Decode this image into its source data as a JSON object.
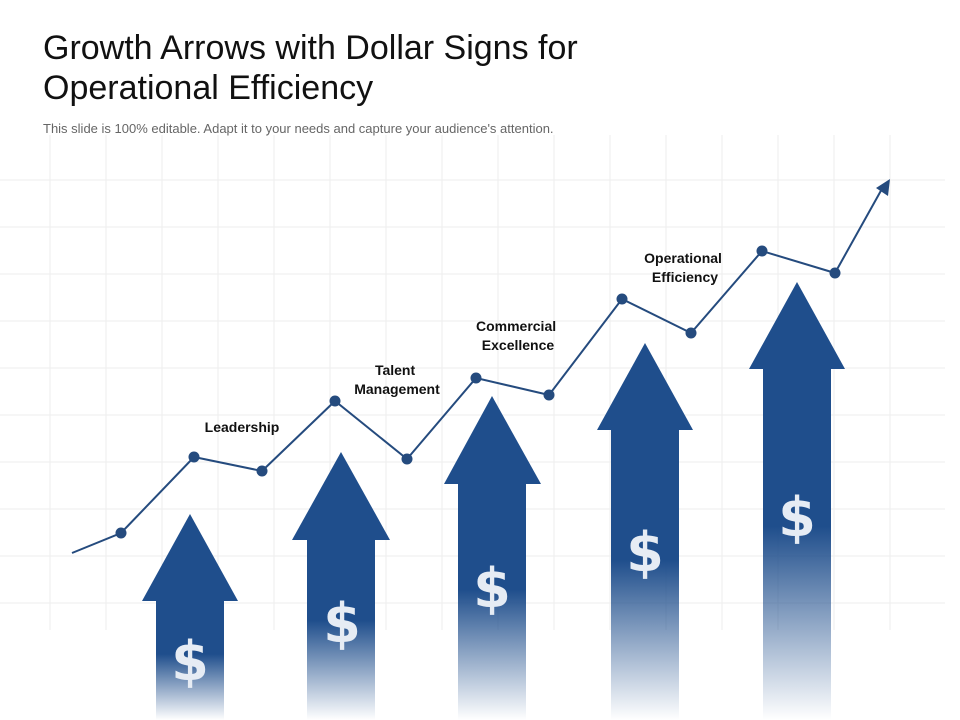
{
  "slide": {
    "title_line1": "Growth Arrows with Dollar Signs for",
    "title_line2": "Operational Efficiency",
    "subtitle": "This slide is 100% editable. Adapt it to your needs and capture your audience's attention."
  },
  "milestones": [
    {
      "line1": "Leadership",
      "line2": ""
    },
    {
      "line1": "Talent",
      "line2": "Management"
    },
    {
      "line1": "Commercial",
      "line2": "Excellence"
    },
    {
      "line1": "Operational",
      "line2": "Efficiency"
    }
  ],
  "arrows": [
    {
      "symbol": "$",
      "icon": "dollar-sign-icon"
    },
    {
      "symbol": "$",
      "icon": "dollar-sign-icon"
    },
    {
      "symbol": "$",
      "icon": "dollar-sign-icon"
    },
    {
      "symbol": "$",
      "icon": "dollar-sign-icon"
    },
    {
      "symbol": "$",
      "icon": "dollar-sign-icon"
    }
  ],
  "colors": {
    "arrow": "#1f4e8c",
    "trend_line": "#254b7e",
    "dollar": "#e6ecf4",
    "grid": "#eeeeee"
  }
}
